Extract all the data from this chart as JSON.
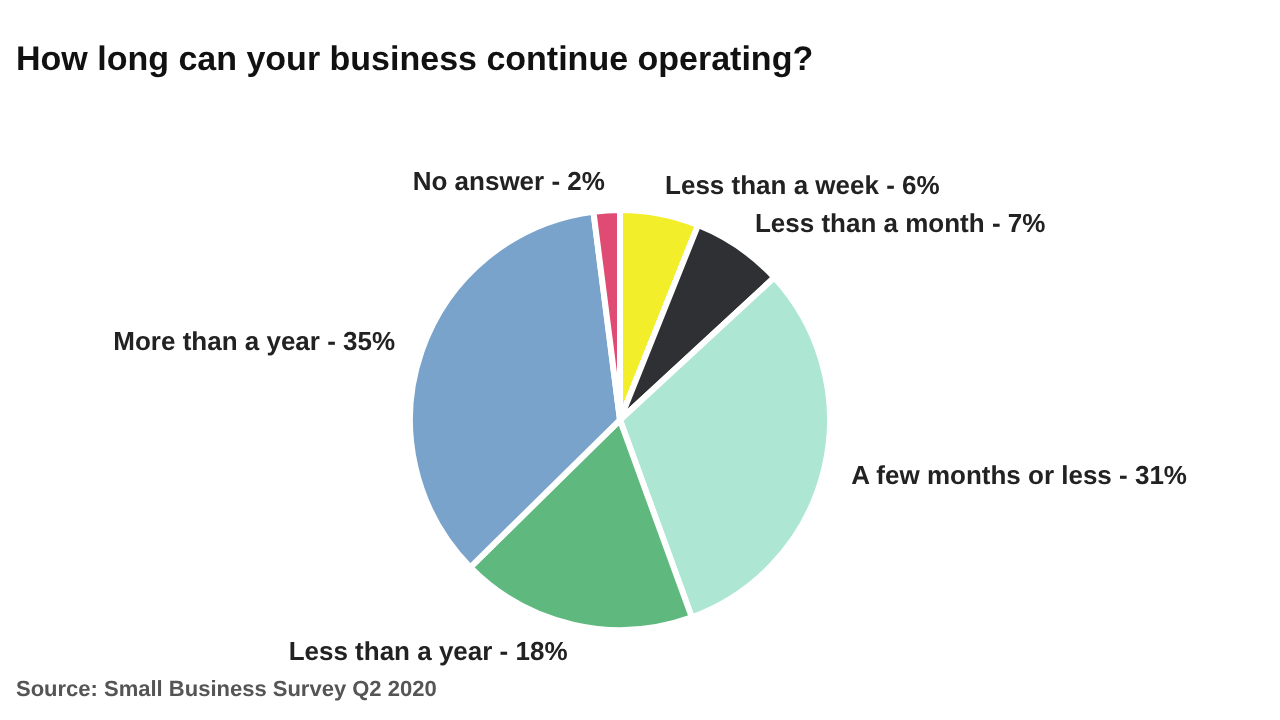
{
  "chart_data": {
    "type": "pie",
    "title": "How long can your business continue operating?",
    "categories": [
      "Less than a week",
      "Less than a month",
      "A few months or less",
      "Less than a year",
      "More than a year",
      "No answer"
    ],
    "values": [
      6,
      7,
      31,
      18,
      35,
      2
    ],
    "value_labels": [
      "6%",
      "7%",
      "31%",
      "18%",
      "35%",
      "2%"
    ],
    "colors": [
      "#f2ee2a",
      "#2e3033",
      "#ade6d3",
      "#5fb97f",
      "#7aa3cc",
      "#e04b73"
    ],
    "annotations": [
      "Source: Small Business Survey Q2 2020"
    ]
  }
}
